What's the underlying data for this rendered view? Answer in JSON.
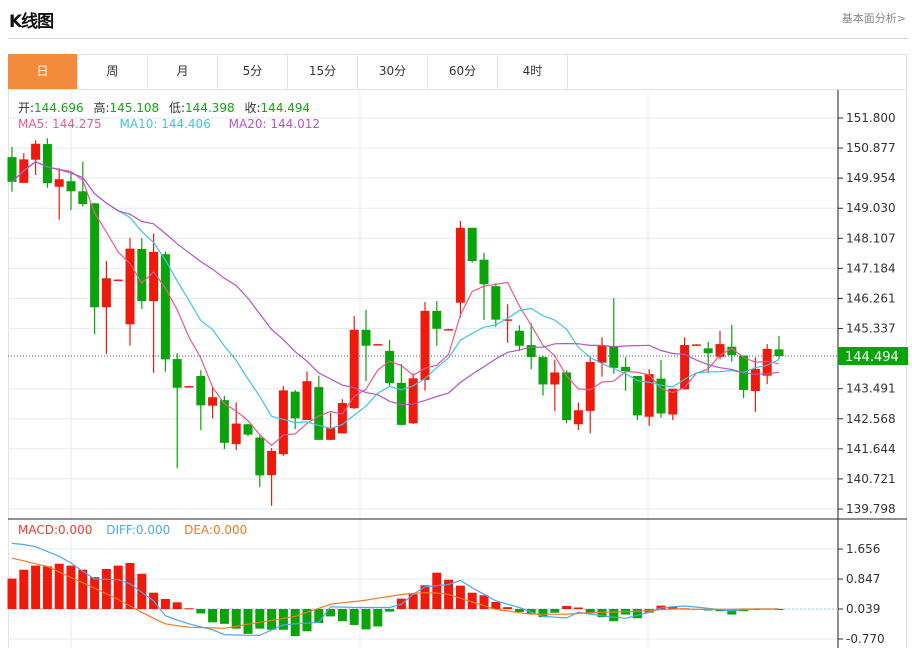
{
  "header": {
    "title": "K线图",
    "fundamental_link": "基本面分析>"
  },
  "tabs": [
    {
      "label": "日",
      "active": true
    },
    {
      "label": "周"
    },
    {
      "label": "月"
    },
    {
      "label": "5分"
    },
    {
      "label": "15分"
    },
    {
      "label": "30分"
    },
    {
      "label": "60分"
    },
    {
      "label": "4时"
    }
  ],
  "ohlc_legend": {
    "open_label": "开:",
    "open": "144.696",
    "high_label": "高:",
    "high": "145.108",
    "low_label": "低:",
    "low": "144.398",
    "close_label": "收:",
    "close": "144.494"
  },
  "ma_legend": {
    "ma5": "MA5: 144.275",
    "ma10": "MA10: 144.406",
    "ma20": "MA20: 144.012"
  },
  "macd_legend": {
    "macd": "MACD:0.000",
    "diff": "DIFF:0.000",
    "dea": "DEA:0.000"
  },
  "colors": {
    "up": "#f01a0c",
    "down": "#0aa30a",
    "ma5": "#f0588a",
    "ma10": "#3ec6e0",
    "ma20": "#b455c8",
    "diff": "#4aa8f0",
    "dea": "#f07a22",
    "tab_active": "#f28c3c"
  },
  "chart_data": [
    {
      "type": "candlestick",
      "y_ticks": [
        "151.800",
        "150.877",
        "149.954",
        "149.030",
        "148.107",
        "147.184",
        "146.261",
        "145.337",
        "143.491",
        "142.568",
        "141.644",
        "140.721",
        "139.798"
      ],
      "ylim": [
        139.798,
        151.8
      ],
      "current_price": "144.494",
      "grid": true,
      "up_color_convention": "red-up",
      "candles": [
        [
          150.6,
          150.91,
          149.54,
          149.84
        ],
        [
          149.81,
          150.72,
          149.81,
          150.53
        ],
        [
          150.52,
          151.12,
          150.05,
          151.01
        ],
        [
          151.0,
          151.18,
          149.66,
          149.8
        ],
        [
          149.69,
          150.26,
          148.68,
          149.92
        ],
        [
          149.86,
          150.1,
          148.97,
          149.55
        ],
        [
          149.55,
          150.46,
          149.08,
          149.16
        ],
        [
          149.18,
          149.2,
          145.17,
          145.99
        ],
        [
          145.99,
          147.41,
          144.55,
          146.88
        ],
        [
          146.83,
          146.85,
          146.81,
          146.84
        ],
        [
          145.47,
          148.12,
          144.81,
          147.79
        ],
        [
          147.78,
          148.11,
          145.94,
          146.18
        ],
        [
          146.18,
          148.26,
          143.98,
          147.69
        ],
        [
          147.62,
          147.7,
          144.01,
          144.39
        ],
        [
          144.4,
          144.58,
          141.05,
          143.52
        ],
        [
          143.56,
          143.58,
          143.55,
          143.57
        ],
        [
          143.88,
          144.06,
          142.22,
          142.98
        ],
        [
          142.97,
          143.55,
          142.58,
          143.23
        ],
        [
          143.14,
          143.27,
          141.64,
          141.83
        ],
        [
          141.79,
          143.07,
          141.61,
          142.42
        ],
        [
          142.4,
          142.41,
          142.03,
          142.08
        ],
        [
          141.99,
          142.08,
          140.47,
          140.83
        ],
        [
          140.84,
          141.67,
          139.9,
          141.58
        ],
        [
          141.48,
          143.57,
          141.43,
          143.44
        ],
        [
          143.4,
          143.45,
          142.25,
          142.58
        ],
        [
          142.53,
          144.02,
          142.53,
          143.72
        ],
        [
          143.54,
          143.89,
          141.92,
          141.92
        ],
        [
          141.92,
          142.75,
          141.92,
          142.3
        ],
        [
          142.12,
          143.17,
          142.12,
          143.05
        ],
        [
          142.89,
          145.72,
          142.87,
          145.3
        ],
        [
          145.3,
          145.91,
          143.73,
          144.81
        ],
        [
          144.85,
          144.87,
          144.84,
          144.86
        ],
        [
          144.65,
          144.99,
          143.58,
          143.66
        ],
        [
          143.67,
          144.25,
          142.36,
          142.38
        ],
        [
          142.43,
          143.96,
          142.41,
          143.81
        ],
        [
          143.76,
          146.15,
          143.43,
          145.88
        ],
        [
          145.88,
          146.18,
          144.81,
          145.33
        ],
        [
          145.31,
          145.33,
          145.3,
          145.32
        ],
        [
          146.13,
          148.64,
          145.68,
          148.43
        ],
        [
          148.43,
          148.43,
          147.36,
          147.41
        ],
        [
          147.45,
          147.66,
          145.6,
          146.7
        ],
        [
          146.64,
          146.73,
          145.39,
          145.61
        ],
        [
          145.6,
          146.08,
          144.9,
          145.62
        ],
        [
          145.27,
          145.44,
          144.65,
          144.81
        ],
        [
          144.83,
          145.5,
          144.09,
          144.46
        ],
        [
          144.46,
          144.51,
          143.28,
          143.62
        ],
        [
          143.62,
          144.38,
          142.8,
          143.99
        ],
        [
          143.99,
          144.06,
          142.43,
          142.53
        ],
        [
          142.4,
          143.06,
          142.22,
          142.83
        ],
        [
          142.81,
          144.45,
          142.12,
          144.31
        ],
        [
          144.29,
          145.07,
          143.86,
          144.81
        ],
        [
          144.8,
          146.27,
          143.95,
          144.13
        ],
        [
          144.16,
          144.46,
          143.43,
          144.03
        ],
        [
          143.88,
          143.88,
          142.53,
          142.67
        ],
        [
          142.63,
          144.09,
          142.35,
          143.94
        ],
        [
          143.8,
          144.37,
          142.6,
          142.73
        ],
        [
          142.7,
          143.49,
          142.53,
          143.49
        ],
        [
          143.47,
          145.07,
          143.47,
          144.83
        ],
        [
          144.84,
          144.86,
          144.83,
          144.85
        ],
        [
          144.73,
          144.93,
          143.98,
          144.58
        ],
        [
          144.47,
          145.27,
          144.39,
          144.86
        ],
        [
          144.78,
          145.45,
          144.32,
          144.52
        ],
        [
          144.51,
          144.51,
          143.2,
          143.45
        ],
        [
          143.42,
          144.45,
          142.78,
          144.1
        ],
        [
          143.89,
          144.86,
          143.63,
          144.71
        ],
        [
          144.696,
          145.108,
          144.398,
          144.494
        ]
      ],
      "series": [
        {
          "name": "MA5",
          "period": 5
        },
        {
          "name": "MA10",
          "period": 10
        },
        {
          "name": "MA20",
          "period": 20
        }
      ]
    },
    {
      "type": "bar",
      "y_ticks": [
        "1.656",
        "0.847",
        "0.039",
        "-0.770"
      ],
      "baseline": 0.039,
      "macd": [
        0.82,
        1.06,
        1.17,
        1.15,
        1.22,
        1.17,
        1.06,
        0.86,
        1.08,
        1.17,
        1.24,
        0.95,
        0.44,
        0.27,
        0.18,
        0.02,
        -0.12,
        -0.36,
        -0.4,
        -0.53,
        -0.67,
        -0.53,
        -0.56,
        -0.56,
        -0.73,
        -0.6,
        -0.38,
        -0.2,
        -0.33,
        -0.43,
        -0.55,
        -0.47,
        -0.07,
        0.28,
        0.4,
        0.64,
        0.98,
        0.79,
        0.63,
        0.44,
        0.37,
        0.19,
        0.05,
        -0.08,
        -0.12,
        -0.22,
        -0.1,
        0.08,
        0.04,
        -0.12,
        -0.22,
        -0.33,
        -0.15,
        -0.25,
        -0.1,
        0.09,
        0.07,
        0.02,
        -0.02,
        -0.04,
        -0.06,
        -0.15,
        -0.06,
        0.0,
        0.01,
        0.0
      ],
      "diff": [
        1.77,
        1.74,
        1.68,
        1.55,
        1.42,
        1.24,
        1.02,
        0.81,
        0.8,
        0.79,
        0.68,
        0.45,
        0.22,
        -0.18,
        -0.3,
        -0.4,
        -0.48,
        -0.56,
        -0.69,
        -0.7,
        -0.71,
        -0.71,
        -0.57,
        -0.43,
        -0.4,
        -0.38,
        -0.36,
        0.06,
        0.05,
        0.04,
        0.04,
        0.04,
        0.04,
        0.13,
        0.4,
        0.6,
        0.63,
        0.66,
        0.77,
        0.57,
        0.4,
        0.22,
        0.13,
        0.04,
        -0.08,
        -0.2,
        -0.22,
        -0.24,
        -0.09,
        -0.14,
        -0.18,
        -0.22,
        -0.25,
        -0.17,
        -0.09,
        0.03,
        0.06,
        0.08,
        0.05,
        0.02,
        -0.02,
        -0.05,
        -0.02,
        0.0,
        0.0,
        0.0
      ],
      "dea": [
        1.37,
        1.3,
        1.22,
        1.15,
        1.0,
        0.85,
        0.71,
        0.56,
        0.41,
        0.26,
        0.08,
        -0.09,
        -0.25,
        -0.4,
        -0.45,
        -0.49,
        -0.5,
        -0.51,
        -0.52,
        -0.47,
        -0.41,
        -0.36,
        -0.31,
        -0.25,
        -0.2,
        -0.09,
        0.02,
        0.13,
        0.17,
        0.2,
        0.24,
        0.29,
        0.34,
        0.39,
        0.42,
        0.44,
        0.43,
        0.39,
        0.29,
        0.19,
        0.09,
        -0.01,
        -0.05,
        -0.1,
        -0.14,
        -0.14,
        -0.14,
        -0.14,
        -0.12,
        -0.1,
        -0.09,
        -0.08,
        -0.07,
        -0.06,
        -0.04,
        -0.02,
        0.0,
        0.0,
        -0.01,
        -0.01,
        -0.01,
        -0.01,
        0.0,
        0.0,
        0.0,
        0.0
      ]
    }
  ]
}
